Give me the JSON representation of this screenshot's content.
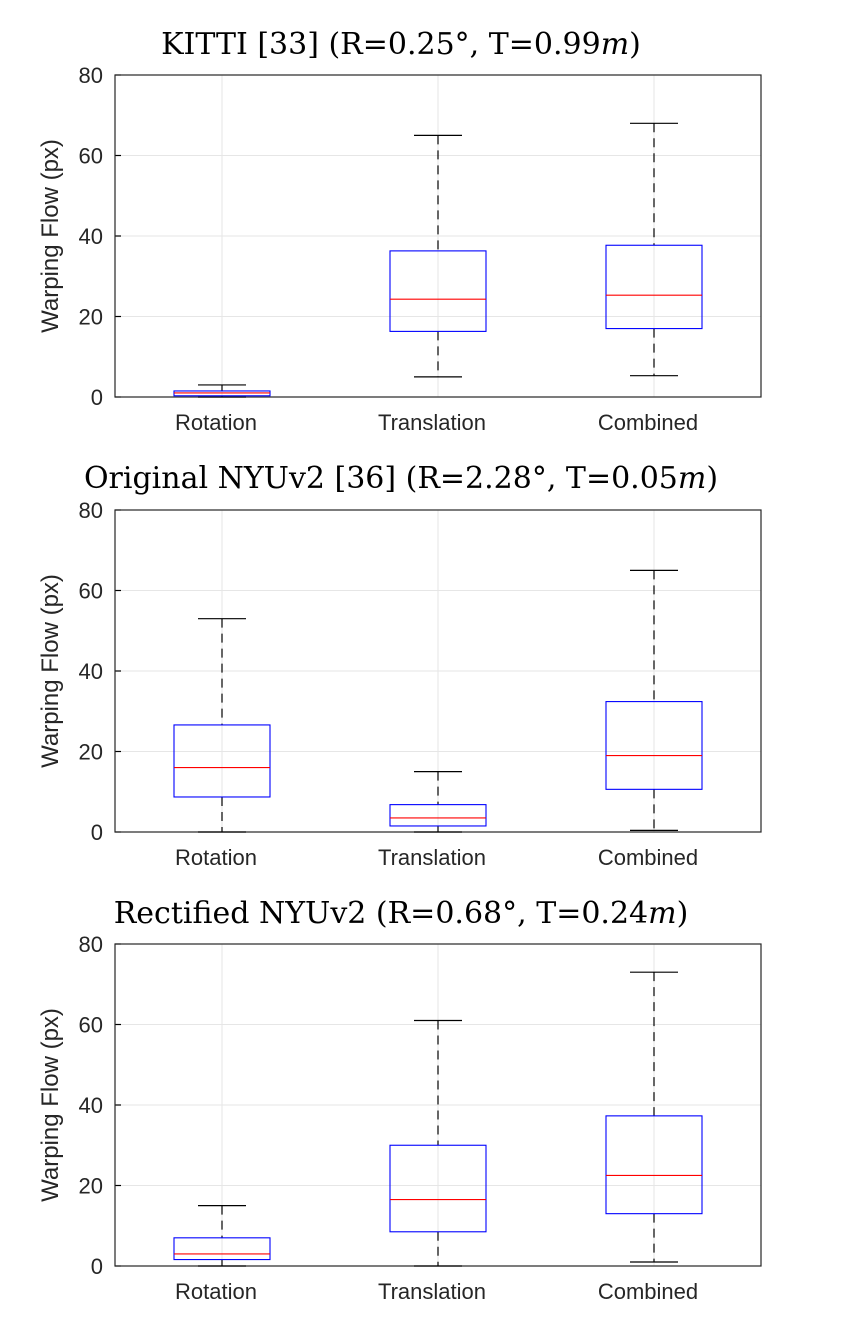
{
  "chart_data": [
    {
      "type": "box",
      "title": {
        "prefix": "KITTI [33] (R=0.25°, T=0.99",
        "unit": "m",
        "suffix": ")"
      },
      "ylabel": "Warping Flow (px)",
      "ylim": [
        0,
        80
      ],
      "yticks": [
        "0",
        "20",
        "40",
        "60",
        "80"
      ],
      "grid": true,
      "categories": [
        "Rotation",
        "Translation",
        "Combined"
      ],
      "boxes": [
        {
          "min": 0,
          "q1": 0.3,
          "median": 1.0,
          "q3": 1.5,
          "max": 3
        },
        {
          "min": 5,
          "q1": 16.3,
          "median": 24.3,
          "q3": 36.3,
          "max": 65
        },
        {
          "min": 5.3,
          "q1": 17,
          "median": 25.3,
          "q3": 37.7,
          "max": 68
        }
      ]
    },
    {
      "type": "box",
      "title": {
        "prefix": "Original NYUv2 [36] (R=2.28°, T=0.05",
        "unit": "m",
        "suffix": ")"
      },
      "ylabel": "Warping Flow (px)",
      "ylim": [
        0,
        80
      ],
      "yticks": [
        "0",
        "20",
        "40",
        "60",
        "80"
      ],
      "grid": true,
      "categories": [
        "Rotation",
        "Translation",
        "Combined"
      ],
      "boxes": [
        {
          "min": 0,
          "q1": 8.7,
          "median": 16,
          "q3": 26.6,
          "max": 53
        },
        {
          "min": 0,
          "q1": 1.5,
          "median": 3.5,
          "q3": 6.8,
          "max": 15
        },
        {
          "min": 0.4,
          "q1": 10.6,
          "median": 19,
          "q3": 32.4,
          "max": 65
        }
      ]
    },
    {
      "type": "box",
      "title": {
        "prefix": "Rectified NYUv2 (R=0.68°, T=0.24",
        "unit": "m",
        "suffix": ")"
      },
      "ylabel": "Warping Flow (px)",
      "ylim": [
        0,
        80
      ],
      "yticks": [
        "0",
        "20",
        "40",
        "60",
        "80"
      ],
      "grid": true,
      "categories": [
        "Rotation",
        "Translation",
        "Combined"
      ],
      "boxes": [
        {
          "min": 0,
          "q1": 1.6,
          "median": 3,
          "q3": 7,
          "max": 15
        },
        {
          "min": 0,
          "q1": 8.5,
          "median": 16.5,
          "q3": 30,
          "max": 61
        },
        {
          "min": 1,
          "q1": 13,
          "median": 22.5,
          "q3": 37.3,
          "max": 73
        }
      ]
    }
  ],
  "colors": {
    "box": "#0000ff",
    "median": "#ff0000",
    "whisker": "#000000",
    "grid": "#e6e6e6"
  }
}
